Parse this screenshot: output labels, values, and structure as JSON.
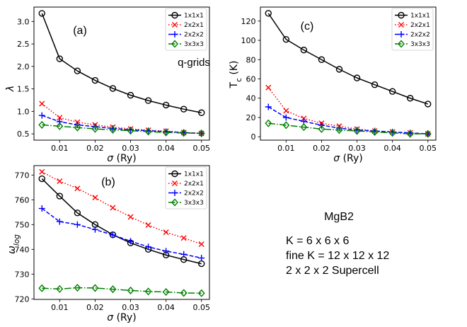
{
  "chart_data": [
    {
      "type": "line",
      "panel_label": "(a)",
      "annotation": "q-grids",
      "xlabel": [
        {
          "t": "σ",
          "italic": true
        },
        {
          "t": " (Ry)"
        }
      ],
      "ylabel": [
        {
          "t": "λ",
          "italic": true
        }
      ],
      "x": [
        0.005,
        0.01,
        0.015,
        0.02,
        0.025,
        0.03,
        0.035,
        0.04,
        0.045,
        0.05
      ],
      "xlim": [
        0.00275,
        0.05225
      ],
      "ylim": [
        0.36,
        3.32
      ],
      "xticks": [
        0.01,
        0.02,
        0.03,
        0.04,
        0.05
      ],
      "xtick_labels": [
        "0.01",
        "0.02",
        "0.03",
        "0.04",
        "0.05"
      ],
      "yticks": [
        0.5,
        1.0,
        1.5,
        2.0,
        2.5,
        3.0
      ],
      "ytick_labels": [
        "0.5",
        "1.0",
        "1.5",
        "2.0",
        "2.5",
        "3.0"
      ],
      "grid": false,
      "legend_position": "upper right",
      "series": [
        {
          "name": "1x1x1",
          "color": "#000000",
          "values": [
            3.18,
            2.17,
            1.9,
            1.69,
            1.51,
            1.36,
            1.24,
            1.14,
            1.05,
            0.97
          ]
        },
        {
          "name": "2x2x1",
          "color": "#ff0000",
          "values": [
            1.17,
            0.86,
            0.76,
            0.7,
            0.65,
            0.61,
            0.58,
            0.56,
            0.53,
            0.51
          ]
        },
        {
          "name": "2x2x2",
          "color": "#0000ff",
          "values": [
            0.91,
            0.77,
            0.7,
            0.66,
            0.62,
            0.59,
            0.57,
            0.55,
            0.53,
            0.51
          ]
        },
        {
          "name": "3x3x3",
          "color": "#008000",
          "values": [
            0.7,
            0.67,
            0.64,
            0.61,
            0.59,
            0.57,
            0.55,
            0.53,
            0.52,
            0.51
          ]
        }
      ]
    },
    {
      "type": "line",
      "panel_label": "(b)",
      "xlabel": [
        {
          "t": "σ",
          "italic": true
        },
        {
          "t": " (Ry)"
        }
      ],
      "ylabel": [
        {
          "t": "ω",
          "italic": true
        },
        {
          "t": "log",
          "sub": true,
          "italic": true
        }
      ],
      "x": [
        0.005,
        0.01,
        0.015,
        0.02,
        0.025,
        0.03,
        0.035,
        0.04,
        0.045,
        0.05
      ],
      "xlim": [
        0.00275,
        0.05225
      ],
      "ylim": [
        719.8,
        773.8
      ],
      "xticks": [
        0.01,
        0.02,
        0.03,
        0.04,
        0.05
      ],
      "xtick_labels": [
        "0.01",
        "0.02",
        "0.03",
        "0.04",
        "0.05"
      ],
      "yticks": [
        720,
        730,
        740,
        750,
        760,
        770
      ],
      "ytick_labels": [
        "720",
        "730",
        "740",
        "750",
        "760",
        "770"
      ],
      "grid": false,
      "legend_position": "upper right",
      "series": [
        {
          "name": "1x1x1",
          "color": "#000000",
          "values": [
            768.5,
            761.5,
            754.7,
            750.0,
            745.9,
            742.6,
            740.0,
            737.7,
            735.9,
            734.2
          ]
        },
        {
          "name": "2x2x1",
          "color": "#ff0000",
          "values": [
            771.3,
            767.5,
            764.6,
            760.9,
            756.8,
            753.1,
            749.8,
            746.9,
            744.6,
            742.1
          ]
        },
        {
          "name": "2x2x2",
          "color": "#0000ff",
          "values": [
            756.5,
            751.2,
            750.0,
            748.0,
            745.8,
            743.3,
            741.0,
            739.3,
            738.0,
            736.5
          ]
        },
        {
          "name": "3x3x3",
          "color": "#008000",
          "values": [
            724.3,
            724.0,
            724.5,
            724.4,
            723.9,
            723.4,
            723.0,
            722.8,
            722.4,
            722.3
          ]
        }
      ]
    },
    {
      "type": "line",
      "panel_label": "(c)",
      "xlabel": [
        {
          "t": "σ",
          "italic": true
        },
        {
          "t": " (Ry)"
        }
      ],
      "ylabel": [
        {
          "t": "T"
        },
        {
          "t": "c",
          "sub": true
        },
        {
          "t": " (K)"
        }
      ],
      "x": [
        0.005,
        0.01,
        0.015,
        0.02,
        0.025,
        0.03,
        0.035,
        0.04,
        0.045,
        0.05
      ],
      "xlim": [
        0.00275,
        0.05225
      ],
      "ylim": [
        -3.5,
        134.5
      ],
      "xticks": [
        0.01,
        0.02,
        0.03,
        0.04,
        0.05
      ],
      "xtick_labels": [
        "0.01",
        "0.02",
        "0.03",
        "0.04",
        "0.05"
      ],
      "yticks": [
        0,
        20,
        40,
        60,
        80,
        100,
        120
      ],
      "ytick_labels": [
        "0",
        "20",
        "40",
        "60",
        "80",
        "100",
        "120"
      ],
      "grid": false,
      "legend_position": "upper right",
      "series": [
        {
          "name": "1x1x1",
          "color": "#000000",
          "values": [
            128,
            101,
            90,
            80,
            70,
            61,
            54,
            47,
            40,
            34
          ]
        },
        {
          "name": "2x2x1",
          "color": "#ff0000",
          "values": [
            51,
            27,
            19,
            14,
            11,
            8,
            6,
            5,
            4,
            3
          ]
        },
        {
          "name": "2x2x2",
          "color": "#0000ff",
          "values": [
            31,
            20,
            16,
            12,
            9,
            7,
            6,
            5,
            4,
            3
          ]
        },
        {
          "name": "3x3x3",
          "color": "#008000",
          "values": [
            14,
            12,
            10,
            8,
            7,
            6,
            5,
            4,
            3,
            3
          ]
        }
      ]
    }
  ],
  "notes": {
    "title": "MgB2",
    "lines": [
      "K = 6 x 6 x 6",
      "fine K = 12 x 12 x 12",
      "2 x 2 x 2 Supercell"
    ]
  }
}
